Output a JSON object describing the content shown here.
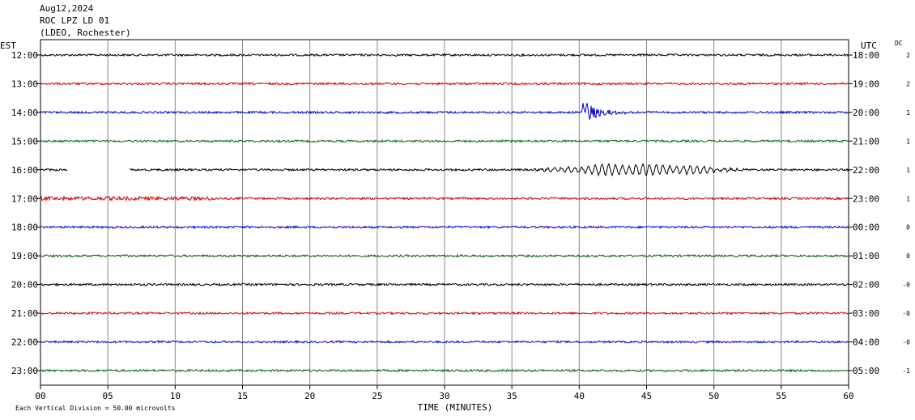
{
  "header": {
    "date": "Aug12,2024",
    "station": "ROC LPZ LD 01",
    "network": "(LDEO, Rochester)"
  },
  "chart_data": {
    "type": "line",
    "left_axis_label": "EST",
    "right_axis_label": "UTC",
    "dc_label": "DC",
    "xlabel": "TIME (MINUTES)",
    "x_ticks": [
      "00",
      "05",
      "10",
      "15",
      "20",
      "25",
      "30",
      "35",
      "40",
      "45",
      "50",
      "55",
      "60"
    ],
    "xlim": [
      0,
      60
    ],
    "grid_minute_step": 5,
    "footnote": "Each Vertical Division =   50.00 microvolts",
    "rows": [
      {
        "est": "12:00",
        "utc": "18:00",
        "dc": "2",
        "color": "#000000"
      },
      {
        "est": "13:00",
        "utc": "19:00",
        "dc": "2",
        "color": "#cc0000"
      },
      {
        "est": "14:00",
        "utc": "20:00",
        "dc": "1",
        "color": "#0000cc"
      },
      {
        "est": "15:00",
        "utc": "21:00",
        "dc": "1",
        "color": "#006600"
      },
      {
        "est": "16:00",
        "utc": "22:00",
        "dc": "1",
        "color": "#000000"
      },
      {
        "est": "17:00",
        "utc": "23:00",
        "dc": "1",
        "color": "#cc0000"
      },
      {
        "est": "18:00",
        "utc": "00:00",
        "dc": "0",
        "color": "#0000cc"
      },
      {
        "est": "19:00",
        "utc": "01:00",
        "dc": "0",
        "color": "#006600"
      },
      {
        "est": "20:00",
        "utc": "02:00",
        "dc": "-0",
        "color": "#000000"
      },
      {
        "est": "21:00",
        "utc": "03:00",
        "dc": "-0",
        "color": "#cc0000"
      },
      {
        "est": "22:00",
        "utc": "04:00",
        "dc": "-0",
        "color": "#0000cc"
      },
      {
        "est": "23:00",
        "utc": "05:00",
        "dc": "-1",
        "color": "#006600"
      }
    ],
    "events": [
      {
        "row": 2,
        "start_min": 40.2,
        "end_min": 47.5,
        "peak_divisions": 0.5
      },
      {
        "row": 4,
        "start_min": 36.5,
        "end_min": 52.5,
        "peak_divisions": 0.2
      }
    ],
    "gaps": [
      {
        "row": 4,
        "start_min": 2.0,
        "end_min": 6.6
      }
    ]
  }
}
